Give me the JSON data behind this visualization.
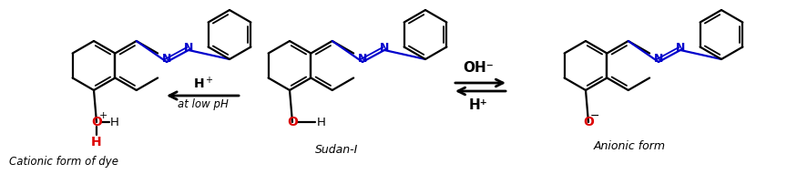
{
  "background": "#ffffff",
  "blue": "#0000cc",
  "red": "#dd0000",
  "black": "#000000",
  "label_sudan": "Sudan-I",
  "label_anionic": "Anionic form",
  "label_cationic": "Cationic form of dye",
  "label_oh_minus": "OH⁻",
  "label_h_plus": "H⁺",
  "label_at_low_ph": "at low pH",
  "figsize": [
    8.87,
    1.91
  ],
  "dpi": 100
}
